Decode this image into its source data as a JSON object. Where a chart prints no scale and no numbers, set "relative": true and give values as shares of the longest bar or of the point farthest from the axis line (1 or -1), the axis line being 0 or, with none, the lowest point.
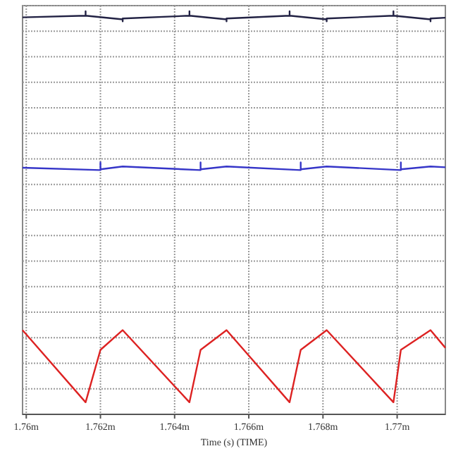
{
  "chart_data": {
    "type": "line",
    "relative": true,
    "xlabel": "Time (s) (TIME)",
    "xlim": [
      1.7599,
      1.7713
    ],
    "xticks": [
      {
        "value": 1.76,
        "label": "1.76m"
      },
      {
        "value": 1.762,
        "label": "1.762m"
      },
      {
        "value": 1.764,
        "label": "1.764m"
      },
      {
        "value": 1.766,
        "label": "1.766m"
      },
      {
        "value": 1.768,
        "label": "1.768m"
      },
      {
        "value": 1.77,
        "label": "1.77m"
      }
    ],
    "grid": true,
    "line_style": "solid",
    "marker": "none",
    "series": [
      {
        "color": "#222244",
        "x": [
          1.7599,
          1.7616,
          1.7616,
          1.7616,
          1.7626,
          1.7626,
          1.7626,
          1.7644,
          1.7644,
          1.7644,
          1.7654,
          1.7654,
          1.7654,
          1.7671,
          1.7671,
          1.7671,
          1.7681,
          1.7681,
          1.7681,
          1.7699,
          1.7699,
          1.7699,
          1.7709,
          1.7709,
          1.7709,
          1.7713
        ],
        "values": [
          0.985,
          0.989,
          1,
          0.989,
          0.98,
          0.975,
          0.982,
          0.989,
          1,
          0.989,
          0.98,
          0.975,
          0.982,
          0.989,
          1,
          0.989,
          0.98,
          0.975,
          0.982,
          0.989,
          1,
          0.989,
          0.98,
          0.975,
          0.982,
          0.984
        ]
      },
      {
        "color": "#3535c8",
        "x": [
          1.7599,
          1.762,
          1.762,
          1.762,
          1.7626,
          1.7647,
          1.7647,
          1.7647,
          1.7654,
          1.7674,
          1.7674,
          1.7674,
          1.7681,
          1.7701,
          1.7701,
          1.7701,
          1.7709,
          1.7713
        ],
        "values": [
          0.612,
          0.606,
          0.625,
          0.608,
          0.615,
          0.606,
          0.625,
          0.608,
          0.615,
          0.606,
          0.625,
          0.608,
          0.615,
          0.606,
          0.625,
          0.608,
          0.615,
          0.613
        ]
      },
      {
        "color": "#dd2222",
        "x": [
          1.7599,
          1.7616,
          1.762,
          1.7626,
          1.7644,
          1.7647,
          1.7654,
          1.7671,
          1.7674,
          1.7681,
          1.7699,
          1.7701,
          1.7709,
          1.7713
        ],
        "values": [
          0.209,
          0.03,
          0.16,
          0.209,
          0.03,
          0.16,
          0.209,
          0.03,
          0.16,
          0.209,
          0.03,
          0.16,
          0.209,
          0.165
        ]
      }
    ]
  }
}
